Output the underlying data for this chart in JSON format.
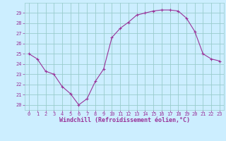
{
  "x": [
    0,
    1,
    2,
    3,
    4,
    5,
    6,
    7,
    8,
    9,
    10,
    11,
    12,
    13,
    14,
    15,
    16,
    17,
    18,
    19,
    20,
    21,
    22,
    23
  ],
  "y": [
    25.0,
    24.5,
    23.3,
    23.0,
    21.8,
    21.1,
    20.0,
    20.6,
    22.3,
    23.5,
    26.6,
    27.5,
    28.1,
    28.8,
    29.0,
    29.2,
    29.3,
    29.3,
    29.2,
    28.5,
    27.2,
    25.0,
    24.5,
    24.3
  ],
  "line_color": "#993399",
  "marker": "+",
  "bg_color": "#cceeff",
  "grid_color": "#99cccc",
  "xlabel": "Windchill (Refroidissement éolien,°C)",
  "xlim": [
    -0.5,
    23.5
  ],
  "ylim": [
    19.5,
    30.0
  ],
  "yticks": [
    20,
    21,
    22,
    23,
    24,
    25,
    26,
    27,
    28,
    29
  ],
  "xticks": [
    0,
    1,
    2,
    3,
    4,
    5,
    6,
    7,
    8,
    9,
    10,
    11,
    12,
    13,
    14,
    15,
    16,
    17,
    18,
    19,
    20,
    21,
    22,
    23
  ],
  "tick_color": "#993399",
  "tick_fontsize": 5.0,
  "xlabel_fontsize": 6.0,
  "label_color": "#993399",
  "line_width": 0.8,
  "marker_size": 3.0,
  "marker_edge_width": 0.8
}
